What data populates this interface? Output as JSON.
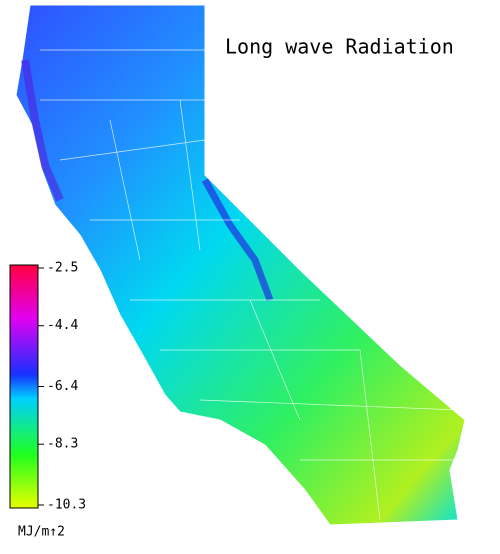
{
  "title": "Long wave Radiation",
  "legend": {
    "ylim": [
      -10.3,
      -2.5
    ],
    "yticks": [
      -2.5,
      -4.4,
      -6.4,
      -8.3,
      -10.3
    ],
    "unit": "MJ/m↑2"
  }
}
